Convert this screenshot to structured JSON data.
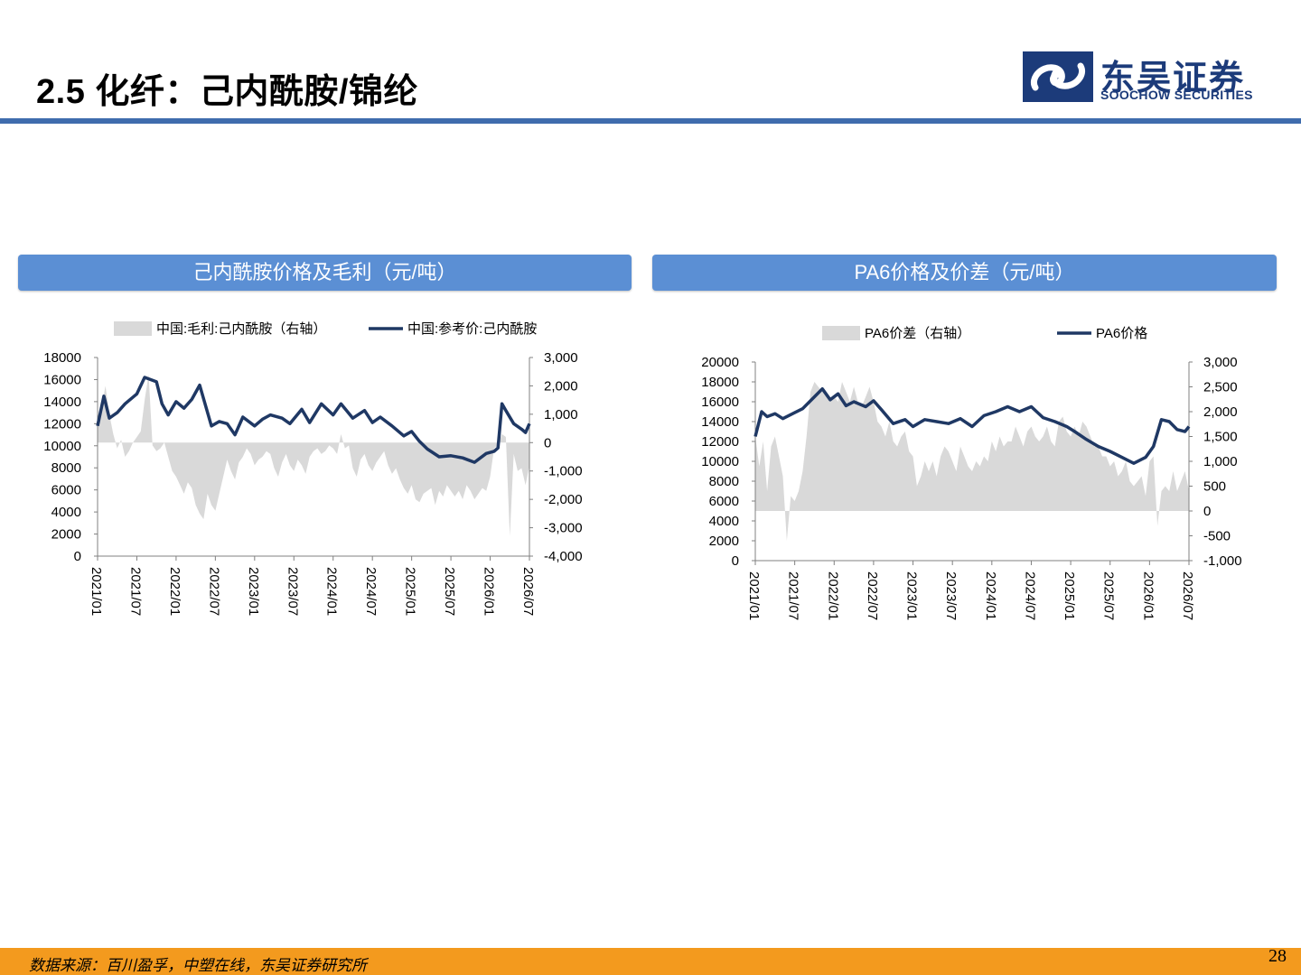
{
  "header": {
    "title": "2.5 化纤：己内酰胺/锦纶",
    "logo": {
      "name_cn": "东吴证券",
      "name_en": "SOOCHOW SECURITIES"
    }
  },
  "panels": [
    {
      "title": "己内酰胺价格及毛利（元/吨）"
    },
    {
      "title": "PA6价格及价差（元/吨）"
    }
  ],
  "colors": {
    "accent": "#3f6cad",
    "panel_header": "#5b8fd4",
    "line": "#1f3864",
    "area": "#d9d9d9",
    "footer": "#f39a1e"
  },
  "chart_data": [
    {
      "type": "line",
      "legend": [
        "中国:毛利:己内酰胺（右轴）",
        "中国:参考价:己内酰胺"
      ],
      "x_ticks": [
        "2021/01",
        "2021/07",
        "2022/01",
        "2022/07",
        "2023/01",
        "2023/07",
        "2024/01",
        "2024/07",
        "2025/01",
        "2025/07",
        "2026/01",
        "2026/07"
      ],
      "left_axis": {
        "ylim": [
          0,
          18000
        ],
        "ticks": [
          "0",
          "2000",
          "4000",
          "6000",
          "8000",
          "10000",
          "12000",
          "14000",
          "16000",
          "18000"
        ]
      },
      "right_axis": {
        "ylim": [
          -4000,
          3000
        ],
        "ticks": [
          "-4,000",
          "-3,000",
          "-2,000",
          "-1,000",
          "0",
          "1,000",
          "2,000",
          "3,000"
        ]
      },
      "series": [
        {
          "name": "中国:参考价:己内酰胺",
          "axis": "left",
          "kind": "line",
          "x": [
            2021.0,
            2021.08,
            2021.15,
            2021.25,
            2021.35,
            2021.5,
            2021.6,
            2021.75,
            2021.82,
            2021.9,
            2022.0,
            2022.1,
            2022.2,
            2022.3,
            2022.45,
            2022.55,
            2022.65,
            2022.75,
            2022.85,
            2023.0,
            2023.1,
            2023.2,
            2023.35,
            2023.45,
            2023.6,
            2023.7,
            2023.85,
            2024.0,
            2024.1,
            2024.25,
            2024.4,
            2024.5,
            2024.6,
            2024.75,
            2024.9,
            2025.0,
            2025.1,
            2025.2,
            2025.35,
            2025.5,
            2025.65,
            2025.8,
            2025.95,
            2026.05,
            2026.1,
            2026.15,
            2026.2,
            2026.3,
            2026.4,
            2026.45,
            2026.5
          ],
          "values": [
            11800,
            14500,
            12500,
            13000,
            13800,
            14700,
            16200,
            15800,
            13800,
            12800,
            14000,
            13400,
            14200,
            15500,
            11800,
            12200,
            12000,
            11000,
            12600,
            11800,
            12400,
            12800,
            12500,
            12000,
            13300,
            12100,
            13800,
            12800,
            13800,
            12500,
            13200,
            12100,
            12600,
            11800,
            10900,
            11300,
            10400,
            9700,
            9000,
            9100,
            8900,
            8500,
            9300,
            9500,
            9800,
            13800,
            13200,
            12000,
            11500,
            11200,
            12000
          ]
        },
        {
          "name": "中国:毛利:己内酰胺（右轴）",
          "axis": "right",
          "kind": "area",
          "x": [
            2021.0,
            2021.05,
            2021.1,
            2021.15,
            2021.2,
            2021.25,
            2021.3,
            2021.35,
            2021.4,
            2021.45,
            2021.5,
            2021.55,
            2021.6,
            2021.65,
            2021.7,
            2021.75,
            2021.8,
            2021.85,
            2021.9,
            2021.95,
            2022.0,
            2022.05,
            2022.1,
            2022.15,
            2022.2,
            2022.25,
            2022.3,
            2022.35,
            2022.4,
            2022.45,
            2022.5,
            2022.55,
            2022.6,
            2022.65,
            2022.7,
            2022.75,
            2022.8,
            2022.85,
            2022.9,
            2022.95,
            2023.0,
            2023.05,
            2023.1,
            2023.15,
            2023.2,
            2023.25,
            2023.3,
            2023.35,
            2023.4,
            2023.45,
            2023.5,
            2023.55,
            2023.6,
            2023.65,
            2023.7,
            2023.75,
            2023.8,
            2023.85,
            2023.9,
            2023.95,
            2024.0,
            2024.05,
            2024.1,
            2024.15,
            2024.2,
            2024.25,
            2024.3,
            2024.35,
            2024.4,
            2024.45,
            2024.5,
            2024.55,
            2024.6,
            2024.65,
            2024.7,
            2024.75,
            2024.8,
            2024.85,
            2024.9,
            2024.95,
            2025.0,
            2025.05,
            2025.1,
            2025.15,
            2025.2,
            2025.25,
            2025.3,
            2025.35,
            2025.4,
            2025.45,
            2025.5,
            2025.55,
            2025.6,
            2025.65,
            2025.7,
            2025.75,
            2025.8,
            2025.85,
            2025.9,
            2025.95,
            2026.0,
            2026.05,
            2026.1,
            2026.15,
            2026.2,
            2026.25,
            2026.3,
            2026.35,
            2026.4,
            2026.45,
            2026.5
          ],
          "values": [
            800,
            1200,
            2000,
            1000,
            300,
            -200,
            100,
            -500,
            -300,
            0,
            200,
            400,
            1500,
            2400,
            -100,
            -300,
            -200,
            0,
            -500,
            -1000,
            -1200,
            -1500,
            -1800,
            -1400,
            -1600,
            -2200,
            -2500,
            -2700,
            -1800,
            -2200,
            -2400,
            -1800,
            -1200,
            -600,
            -1000,
            -1300,
            -700,
            -500,
            -200,
            -400,
            -800,
            -600,
            -500,
            -300,
            -400,
            -900,
            -1200,
            -700,
            -400,
            -800,
            -1000,
            -600,
            -800,
            -1100,
            -500,
            -300,
            -200,
            -400,
            -300,
            -100,
            -200,
            -400,
            300,
            -200,
            -100,
            -900,
            -1200,
            -600,
            -400,
            -800,
            -1000,
            -700,
            -500,
            -300,
            -800,
            -1100,
            -900,
            -1300,
            -1600,
            -1800,
            -1500,
            -2000,
            -2100,
            -1800,
            -1700,
            -1600,
            -2200,
            -1700,
            -1900,
            -1500,
            -1700,
            -1900,
            -1700,
            -2000,
            -1500,
            -1700,
            -2000,
            -1800,
            -1600,
            -1700,
            -1200,
            -200,
            -100,
            300,
            200,
            -3300,
            -400,
            -1000,
            -900,
            -1500,
            -800
          ]
        }
      ]
    },
    {
      "type": "line",
      "legend": [
        "PA6价差（右轴）",
        "PA6价格"
      ],
      "x_ticks": [
        "2021/01",
        "2021/07",
        "2022/01",
        "2022/07",
        "2023/01",
        "2023/07",
        "2024/01",
        "2024/07",
        "2025/01",
        "2025/07",
        "2026/01",
        "2026/07"
      ],
      "left_axis": {
        "ylim": [
          0,
          20000
        ],
        "ticks": [
          "0",
          "2000",
          "4000",
          "6000",
          "8000",
          "10000",
          "12000",
          "14000",
          "16000",
          "18000",
          "20000"
        ]
      },
      "right_axis": {
        "ylim": [
          -1000,
          3000
        ],
        "ticks": [
          "-1,000",
          "-500",
          "0",
          "500",
          "1,000",
          "1,500",
          "2,000",
          "2,500",
          "3,000"
        ]
      },
      "series": [
        {
          "name": "PA6价格",
          "axis": "left",
          "kind": "line",
          "x": [
            2021.0,
            2021.08,
            2021.15,
            2021.25,
            2021.35,
            2021.5,
            2021.6,
            2021.75,
            2021.85,
            2021.95,
            2022.05,
            2022.15,
            2022.25,
            2022.4,
            2022.5,
            2022.6,
            2022.75,
            2022.9,
            2023.0,
            2023.15,
            2023.3,
            2023.45,
            2023.6,
            2023.75,
            2023.9,
            2024.05,
            2024.2,
            2024.35,
            2024.5,
            2024.65,
            2024.8,
            2024.95,
            2025.05,
            2025.2,
            2025.35,
            2025.5,
            2025.65,
            2025.8,
            2025.95,
            2026.05,
            2026.15,
            2026.25,
            2026.35,
            2026.45,
            2026.5
          ],
          "values": [
            12500,
            15000,
            14500,
            14800,
            14300,
            14900,
            15300,
            16500,
            17300,
            16200,
            16800,
            15600,
            16000,
            15500,
            16100,
            15200,
            13800,
            14200,
            13500,
            14200,
            14000,
            13800,
            14300,
            13500,
            14600,
            15000,
            15500,
            15000,
            15500,
            14400,
            14000,
            13500,
            13000,
            12200,
            11500,
            11000,
            10400,
            9800,
            10400,
            11500,
            14200,
            14000,
            13200,
            13000,
            13500
          ]
        },
        {
          "name": "PA6价差（右轴）",
          "axis": "right",
          "kind": "area",
          "x": [
            2021.0,
            2021.05,
            2021.1,
            2021.15,
            2021.2,
            2021.25,
            2021.3,
            2021.35,
            2021.4,
            2021.45,
            2021.5,
            2021.55,
            2021.6,
            2021.65,
            2021.7,
            2021.75,
            2021.8,
            2021.85,
            2021.9,
            2021.95,
            2022.0,
            2022.05,
            2022.1,
            2022.15,
            2022.2,
            2022.25,
            2022.3,
            2022.35,
            2022.4,
            2022.45,
            2022.5,
            2022.55,
            2022.6,
            2022.65,
            2022.7,
            2022.75,
            2022.8,
            2022.85,
            2022.9,
            2022.95,
            2023.0,
            2023.05,
            2023.1,
            2023.15,
            2023.2,
            2023.25,
            2023.3,
            2023.35,
            2023.4,
            2023.45,
            2023.5,
            2023.55,
            2023.6,
            2023.65,
            2023.7,
            2023.75,
            2023.8,
            2023.85,
            2023.9,
            2023.95,
            2024.0,
            2024.05,
            2024.1,
            2024.15,
            2024.2,
            2024.25,
            2024.3,
            2024.35,
            2024.4,
            2024.45,
            2024.5,
            2024.55,
            2024.6,
            2024.65,
            2024.7,
            2024.75,
            2024.8,
            2024.85,
            2024.9,
            2024.95,
            2025.0,
            2025.05,
            2025.1,
            2025.15,
            2025.2,
            2025.25,
            2025.3,
            2025.35,
            2025.4,
            2025.45,
            2025.5,
            2025.55,
            2025.6,
            2025.65,
            2025.7,
            2025.75,
            2025.8,
            2025.85,
            2025.9,
            2025.95,
            2026.0,
            2026.05,
            2026.1,
            2026.15,
            2026.2,
            2026.25,
            2026.3,
            2026.35,
            2026.4,
            2026.45,
            2026.5
          ],
          "values": [
            1500,
            900,
            1400,
            400,
            1300,
            1500,
            1100,
            700,
            -600,
            300,
            200,
            400,
            800,
            1500,
            2400,
            2600,
            2500,
            2400,
            2400,
            2200,
            2300,
            2200,
            2600,
            2400,
            2200,
            2500,
            2200,
            2100,
            2300,
            2500,
            2200,
            1800,
            1700,
            1500,
            1800,
            1400,
            1300,
            1500,
            1600,
            1200,
            1100,
            500,
            700,
            1000,
            800,
            1000,
            700,
            1100,
            1300,
            1200,
            1000,
            800,
            1300,
            1100,
            900,
            800,
            1000,
            900,
            1100,
            1000,
            1400,
            1200,
            1500,
            1300,
            1400,
            1400,
            1700,
            1500,
            1300,
            1600,
            1700,
            1500,
            1400,
            1500,
            1700,
            1400,
            1300,
            1800,
            1900,
            1600,
            1500,
            1700,
            1500,
            1800,
            1700,
            1500,
            1300,
            1300,
            1100,
            1100,
            900,
            1000,
            700,
            800,
            1000,
            600,
            500,
            600,
            700,
            300,
            1000,
            1100,
            -300,
            400,
            500,
            400,
            800,
            400,
            600,
            800,
            400
          ]
        }
      ]
    }
  ],
  "footer": {
    "source": "数据来源：百川盈孚，中塑在线，东吴证券研究所",
    "page_number": "28"
  }
}
